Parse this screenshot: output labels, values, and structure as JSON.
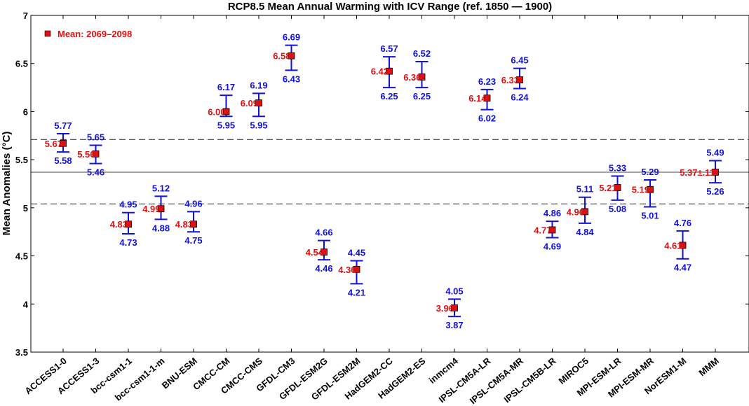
{
  "chart_data": {
    "type": "scatter",
    "title": "RCP8.5 Mean Annual Warming with ICV Range (ref. 1850 — 1900)",
    "ylabel": "Mean Anomalies (°C)",
    "xlabel": "",
    "ylim": [
      3.5,
      7
    ],
    "yticks": [
      "3.5",
      "4",
      "4.5",
      "5",
      "5.5",
      "6",
      "6.5",
      "7"
    ],
    "grid": false,
    "legend": {
      "label": "Mean: 2069–2098",
      "position": "top-left"
    },
    "mean_color": "#dd1111",
    "range_color": "#1111dd",
    "reference_lines": [
      {
        "value": 5.37,
        "style": "solid"
      },
      {
        "value": 5.71,
        "style": "dashed"
      },
      {
        "value": 5.04,
        "style": "dashed"
      }
    ],
    "points": [
      {
        "model": "ACCESS1-0",
        "mean": 5.67,
        "upper": 5.77,
        "lower": 5.58,
        "mean_label": "5.67",
        "upper_label": "5.77",
        "lower_label": "5.58"
      },
      {
        "model": "ACCESS1-3",
        "mean": 5.56,
        "upper": 5.65,
        "lower": 5.46,
        "mean_label": "5.56",
        "upper_label": "5.65",
        "lower_label": "5.46"
      },
      {
        "model": "bcc-csm1-1",
        "mean": 4.83,
        "upper": 4.95,
        "lower": 4.73,
        "mean_label": "4.83",
        "upper_label": "4.95",
        "lower_label": "4.73"
      },
      {
        "model": "bcc-csm1-1-m",
        "mean": 4.99,
        "upper": 5.12,
        "lower": 4.88,
        "mean_label": "4.99",
        "upper_label": "5.12",
        "lower_label": "4.88"
      },
      {
        "model": "BNU-ESM",
        "mean": 4.83,
        "upper": 4.96,
        "lower": 4.75,
        "mean_label": "4.83",
        "upper_label": "4.96",
        "lower_label": "4.75"
      },
      {
        "model": "CMCC-CM",
        "mean": 6.0,
        "upper": 6.17,
        "lower": 5.95,
        "mean_label": "6.00",
        "upper_label": "6.17",
        "lower_label": "5.95"
      },
      {
        "model": "CMCC-CMS",
        "mean": 6.09,
        "upper": 6.19,
        "lower": 5.95,
        "mean_label": "6.09",
        "upper_label": "6.19",
        "lower_label": "5.95"
      },
      {
        "model": "GFDL-CM3",
        "mean": 6.58,
        "upper": 6.69,
        "lower": 6.43,
        "mean_label": "6.58",
        "upper_label": "6.69",
        "lower_label": "6.43"
      },
      {
        "model": "GFDL-ESM2G",
        "mean": 4.54,
        "upper": 4.66,
        "lower": 4.46,
        "mean_label": "4.54",
        "upper_label": "4.66",
        "lower_label": "4.46"
      },
      {
        "model": "GFDL-ESM2M",
        "mean": 4.36,
        "upper": 4.45,
        "lower": 4.21,
        "mean_label": "4.36",
        "upper_label": "4.45",
        "lower_label": "4.21"
      },
      {
        "model": "HadGEM2-CC",
        "mean": 6.42,
        "upper": 6.57,
        "lower": 6.25,
        "mean_label": "6.42",
        "upper_label": "6.57",
        "lower_label": "6.25"
      },
      {
        "model": "HadGEM2-ES",
        "mean": 6.36,
        "upper": 6.52,
        "lower": 6.25,
        "mean_label": "6.36",
        "upper_label": "6.52",
        "lower_label": "6.25"
      },
      {
        "model": "inmcm4",
        "mean": 3.96,
        "upper": 4.05,
        "lower": 3.87,
        "mean_label": "3.96",
        "upper_label": "4.05",
        "lower_label": "3.87"
      },
      {
        "model": "IPSL-CM5A-LR",
        "mean": 6.14,
        "upper": 6.23,
        "lower": 6.02,
        "mean_label": "6.14",
        "upper_label": "6.23",
        "lower_label": "6.02"
      },
      {
        "model": "IPSL-CM5A-MR",
        "mean": 6.33,
        "upper": 6.45,
        "lower": 6.24,
        "mean_label": "6.33",
        "upper_label": "6.45",
        "lower_label": "6.24"
      },
      {
        "model": "IPSL-CM5B-LR",
        "mean": 4.77,
        "upper": 4.86,
        "lower": 4.69,
        "mean_label": "4.77",
        "upper_label": "4.86",
        "lower_label": "4.69"
      },
      {
        "model": "MIROC5",
        "mean": 4.96,
        "upper": 5.11,
        "lower": 4.84,
        "mean_label": "4.96",
        "upper_label": "5.11",
        "lower_label": "4.84"
      },
      {
        "model": "MPI-ESM-LR",
        "mean": 5.21,
        "upper": 5.33,
        "lower": 5.08,
        "mean_label": "5.21",
        "upper_label": "5.33",
        "lower_label": "5.08"
      },
      {
        "model": "MPI-ESM-MR",
        "mean": 5.19,
        "upper": 5.29,
        "lower": 5.01,
        "mean_label": "5.19",
        "upper_label": "5.29",
        "lower_label": "5.01"
      },
      {
        "model": "NorESM1-M",
        "mean": 4.61,
        "upper": 4.76,
        "lower": 4.47,
        "mean_label": "4.61",
        "upper_label": "4.76",
        "lower_label": "4.47"
      },
      {
        "model": "MMM",
        "mean": 5.37,
        "upper": 5.49,
        "lower": 5.26,
        "mean_label": "5.37±.11",
        "upper_label": "5.49",
        "lower_label": "5.26"
      }
    ]
  }
}
